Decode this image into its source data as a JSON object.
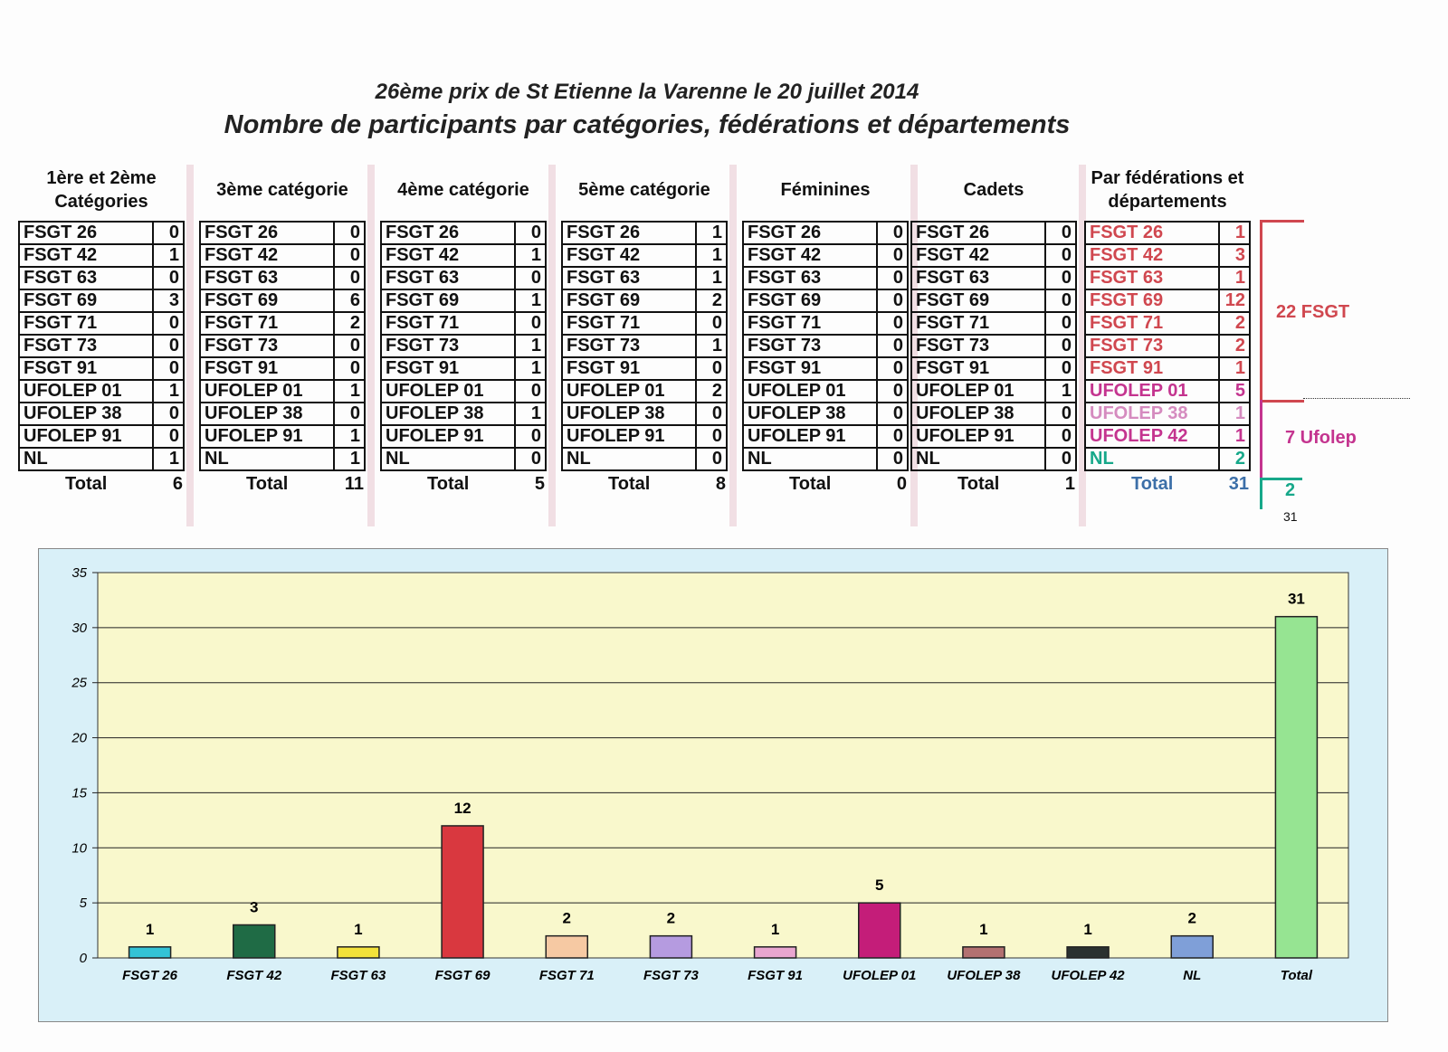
{
  "titles": {
    "line1": "26ème prix de St Etienne la Varenne le 20 juillet 2014",
    "line2": "Nombre de participants par catégories, fédérations et départements"
  },
  "tables": [
    {
      "header": "1ère et 2ème Catégories",
      "total_label": "Total",
      "total": "6",
      "rows": [
        [
          "FSGT 26",
          "0"
        ],
        [
          "FSGT 42",
          "1"
        ],
        [
          "FSGT 63",
          "0"
        ],
        [
          "FSGT 69",
          "3"
        ],
        [
          "FSGT 71",
          "0"
        ],
        [
          "FSGT 73",
          "0"
        ],
        [
          "FSGT 91",
          "0"
        ],
        [
          "UFOLEP 01",
          "1"
        ],
        [
          "UFOLEP 38",
          "0"
        ],
        [
          "UFOLEP 91",
          "0"
        ],
        [
          "NL",
          "1"
        ]
      ]
    },
    {
      "header": "3ème catégorie",
      "total_label": "Total",
      "total": "11",
      "rows": [
        [
          "FSGT 26",
          "0"
        ],
        [
          "FSGT 42",
          "0"
        ],
        [
          "FSGT 63",
          "0"
        ],
        [
          "FSGT 69",
          "6"
        ],
        [
          "FSGT 71",
          "2"
        ],
        [
          "FSGT 73",
          "0"
        ],
        [
          "FSGT 91",
          "0"
        ],
        [
          "UFOLEP 01",
          "1"
        ],
        [
          "UFOLEP 38",
          "0"
        ],
        [
          "UFOLEP 91",
          "1"
        ],
        [
          "NL",
          "1"
        ]
      ]
    },
    {
      "header": "4ème catégorie",
      "total_label": "Total",
      "total": "5",
      "rows": [
        [
          "FSGT 26",
          "0"
        ],
        [
          "FSGT 42",
          "1"
        ],
        [
          "FSGT 63",
          "0"
        ],
        [
          "FSGT 69",
          "1"
        ],
        [
          "FSGT 71",
          "0"
        ],
        [
          "FSGT 73",
          "1"
        ],
        [
          "FSGT 91",
          "1"
        ],
        [
          "UFOLEP 01",
          "0"
        ],
        [
          "UFOLEP 38",
          "1"
        ],
        [
          "UFOLEP 91",
          "0"
        ],
        [
          "NL",
          "0"
        ]
      ]
    },
    {
      "header": "5ème catégorie",
      "total_label": "Total",
      "total": "8",
      "rows": [
        [
          "FSGT 26",
          "1"
        ],
        [
          "FSGT 42",
          "1"
        ],
        [
          "FSGT 63",
          "1"
        ],
        [
          "FSGT 69",
          "2"
        ],
        [
          "FSGT 71",
          "0"
        ],
        [
          "FSGT 73",
          "1"
        ],
        [
          "FSGT 91",
          "0"
        ],
        [
          "UFOLEP 01",
          "2"
        ],
        [
          "UFOLEP 38",
          "0"
        ],
        [
          "UFOLEP 91",
          "0"
        ],
        [
          "NL",
          "0"
        ]
      ]
    },
    {
      "header": "Féminines",
      "total_label": "Total",
      "total": "0",
      "rows": [
        [
          "FSGT 26",
          "0"
        ],
        [
          "FSGT 42",
          "0"
        ],
        [
          "FSGT 63",
          "0"
        ],
        [
          "FSGT 69",
          "0"
        ],
        [
          "FSGT 71",
          "0"
        ],
        [
          "FSGT 73",
          "0"
        ],
        [
          "FSGT 91",
          "0"
        ],
        [
          "UFOLEP 01",
          "0"
        ],
        [
          "UFOLEP 38",
          "0"
        ],
        [
          "UFOLEP 91",
          "0"
        ],
        [
          "NL",
          "0"
        ]
      ]
    },
    {
      "header": "Cadets",
      "total_label": "Total",
      "total": "1",
      "rows": [
        [
          "FSGT 26",
          "0"
        ],
        [
          "FSGT 42",
          "0"
        ],
        [
          "FSGT 63",
          "0"
        ],
        [
          "FSGT 69",
          "0"
        ],
        [
          "FSGT 71",
          "0"
        ],
        [
          "FSGT 73",
          "0"
        ],
        [
          "FSGT 91",
          "0"
        ],
        [
          "UFOLEP 01",
          "1"
        ],
        [
          "UFOLEP 38",
          "0"
        ],
        [
          "UFOLEP 91",
          "0"
        ],
        [
          "NL",
          "0"
        ]
      ]
    },
    {
      "header": "Par fédérations et départements",
      "total_label": "Total",
      "total": "31",
      "rows": [
        [
          "FSGT 26",
          "1"
        ],
        [
          "FSGT 42",
          "3"
        ],
        [
          "FSGT 63",
          "1"
        ],
        [
          "FSGT 69",
          "12"
        ],
        [
          "FSGT 71",
          "2"
        ],
        [
          "FSGT 73",
          "2"
        ],
        [
          "FSGT 91",
          "1"
        ],
        [
          "UFOLEP 01",
          "5"
        ],
        [
          "UFOLEP 38",
          "1"
        ],
        [
          "UFOLEP 42",
          "1"
        ],
        [
          "NL",
          "2"
        ]
      ]
    }
  ],
  "annotations": {
    "fsgt": "22 FSGT",
    "ufolep": "7 Ufolep",
    "nl": "2",
    "grand_total": "31"
  },
  "colors": {
    "fsgt": "#d0474f",
    "ufolep": "#c4348f",
    "nl": "#17a88a",
    "total": "#3c6fa8",
    "plot_bg": "#f9f8cc",
    "chart_bg": "#d9f0f8"
  },
  "chart_data": {
    "type": "bar",
    "categories": [
      "FSGT 26",
      "FSGT 42",
      "FSGT 63",
      "FSGT 69",
      "FSGT 71",
      "FSGT 73",
      "FSGT 91",
      "UFOLEP 01",
      "UFOLEP 38",
      "UFOLEP 42",
      "NL",
      "Total"
    ],
    "values": [
      1,
      3,
      1,
      12,
      2,
      2,
      1,
      5,
      1,
      1,
      2,
      31
    ],
    "colors": [
      "#33c3d6",
      "#1f6b45",
      "#f3e23a",
      "#d9383f",
      "#f6c9a3",
      "#b59be0",
      "#e9a6d0",
      "#c41d79",
      "#b37171",
      "#2a3130",
      "#7f9fd8",
      "#96e492"
    ],
    "ylim": [
      0,
      35
    ],
    "yticks": [
      0,
      5,
      10,
      15,
      20,
      25,
      30,
      35
    ],
    "grid": true,
    "data_labels": true
  }
}
